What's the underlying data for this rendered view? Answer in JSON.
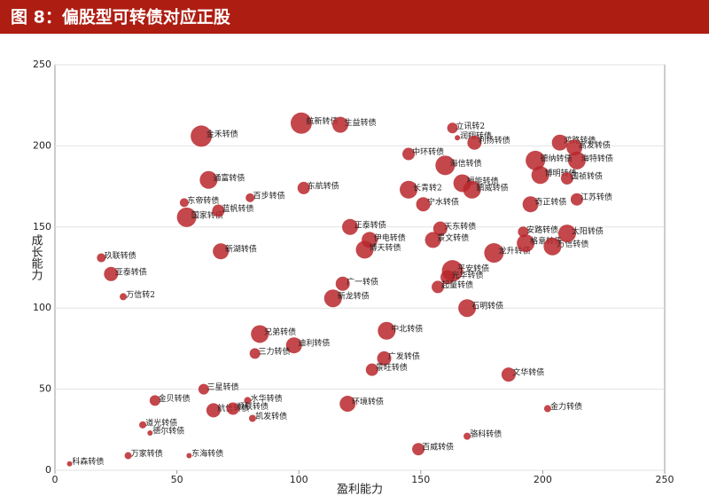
{
  "chart_data": {
    "type": "bubble",
    "title": "图 8：偏股型可转债对应正股",
    "x_label": "盈利能力",
    "y_label": "成长能力",
    "xlim": [
      0,
      250
    ],
    "xticks": [
      0,
      50,
      100,
      150,
      200,
      250
    ],
    "ylim": [
      0,
      250
    ],
    "yticks": [
      0,
      50,
      100,
      150,
      200,
      250
    ],
    "grid": true,
    "color": "#b8272c",
    "point_labels": [
      "金禾转债",
      "航新转债",
      "生益转债",
      "立讯转2",
      "润翔转债",
      "利扬转债",
      "中环转债",
      "海信转债",
      "福能转债",
      "鹏威转债",
      "长青转2",
      "宁水转债",
      "鸿路转债",
      "高发转债",
      "海特转债",
      "德纳转债",
      "博明转债",
      "国祯转债",
      "江苏转债",
      "奇正转债",
      "通富转债",
      "百步转债",
      "东航转债",
      "东帝转债",
      "国家转债",
      "蓝帆转债",
      "新湖转债",
      "玖联转债",
      "亚泰转债",
      "万信转2",
      "正泰转债",
      "伊电转债",
      "博天转债",
      "天东转债",
      "景文转债",
      "龙升转债",
      "安路转债",
      "格意转债",
      "万信转债",
      "太阳转债",
      "平安转债",
      "光华转债",
      "起量转债",
      "广一转债",
      "新龙转债",
      "石明转债",
      "兄弟转债",
      "迪利转债",
      "三力转债",
      "中北转债",
      "广发转债",
      "景旺转债",
      "文华转债",
      "三星转债",
      "环境转债",
      "水华转债",
      "航信转债",
      "顺联转债",
      "凯发转债",
      "金贝转债",
      "道光转债",
      "德尔转债",
      "金力转债",
      "骆科转债",
      "百威转债",
      "东海转债",
      "万家转债",
      "科森转债"
    ],
    "x": [
      60,
      101,
      117,
      163,
      165,
      172,
      145,
      160,
      167,
      171,
      145,
      151,
      207,
      213,
      214,
      197,
      199,
      210,
      214,
      195,
      63,
      80,
      102,
      53,
      54,
      67,
      68,
      19,
      23,
      28,
      121,
      129,
      127,
      158,
      155,
      180,
      192,
      193,
      204,
      210,
      163,
      161,
      157,
      118,
      114,
      169,
      84,
      98,
      82,
      136,
      135,
      130,
      186,
      61,
      120,
      79,
      65,
      73,
      81,
      41,
      36,
      39,
      202,
      169,
      149,
      55,
      30,
      6
    ],
    "values": [
      206,
      214,
      213,
      211,
      205,
      202,
      195,
      188,
      177,
      173,
      173,
      164,
      202,
      199,
      191,
      191,
      182,
      180,
      167,
      164,
      179,
      168,
      174,
      165,
      156,
      160,
      135,
      131,
      121,
      107,
      150,
      142,
      136,
      149,
      142,
      134,
      147,
      140,
      138,
      146,
      123,
      119,
      113,
      115,
      106,
      100,
      84,
      77,
      72,
      86,
      69,
      62,
      59,
      50,
      41,
      43,
      37,
      38,
      32,
      43,
      28,
      23,
      38,
      21,
      13,
      9,
      9,
      4
    ],
    "sizes": [
      12,
      12,
      9,
      6,
      3,
      8,
      7,
      11,
      10,
      10,
      10,
      8,
      9,
      9,
      10,
      11,
      10,
      7,
      7,
      9,
      10,
      5,
      7,
      5,
      11,
      7,
      9,
      5,
      8,
      4,
      9,
      9,
      10,
      8,
      9,
      11,
      6,
      10,
      10,
      10,
      12,
      8,
      7,
      8,
      10,
      10,
      10,
      9,
      6,
      10,
      8,
      7,
      8,
      6,
      9,
      4,
      8,
      7,
      4,
      6,
      4,
      3,
      4,
      4,
      7,
      3,
      4,
      3
    ]
  }
}
